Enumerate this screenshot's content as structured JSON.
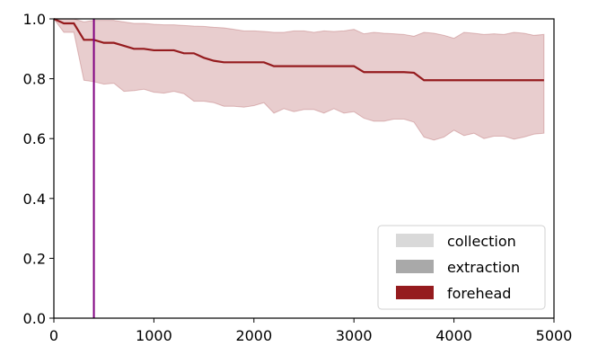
{
  "chart_data": {
    "type": "line",
    "title": "",
    "xlabel": "",
    "ylabel": "",
    "xlim": [
      0,
      5000
    ],
    "ylim": [
      0,
      1.0
    ],
    "xticks": [
      0,
      1000,
      2000,
      3000,
      4000,
      5000
    ],
    "yticks": [
      0.0,
      0.2,
      0.4,
      0.6,
      0.8,
      1.0
    ],
    "xtick_labels": [
      "0",
      "1000",
      "2000",
      "3000",
      "4000",
      "5000"
    ],
    "ytick_labels": [
      "0.0",
      "0.2",
      "0.4",
      "0.6",
      "0.8",
      "1.0"
    ],
    "grid": false,
    "vline": {
      "x": 400,
      "color": "#800080"
    },
    "series": [
      {
        "name": "forehead",
        "color": "#951b1e",
        "x": [
          0,
          100,
          200,
          300,
          400,
          500,
          600,
          700,
          800,
          900,
          1000,
          1100,
          1200,
          1300,
          1400,
          1500,
          1600,
          1700,
          1800,
          1900,
          2000,
          2100,
          2200,
          2300,
          2400,
          2500,
          2600,
          2700,
          2800,
          2900,
          3000,
          3100,
          3200,
          3300,
          3400,
          3500,
          3600,
          3700,
          3800,
          3900,
          4000,
          4100,
          4200,
          4300,
          4400,
          4500,
          4600,
          4700,
          4800,
          4900
        ],
        "y": [
          1.0,
          0.985,
          0.985,
          0.93,
          0.93,
          0.92,
          0.92,
          0.91,
          0.9,
          0.9,
          0.895,
          0.895,
          0.895,
          0.885,
          0.885,
          0.87,
          0.86,
          0.855,
          0.855,
          0.855,
          0.855,
          0.855,
          0.842,
          0.842,
          0.842,
          0.842,
          0.842,
          0.842,
          0.842,
          0.842,
          0.842,
          0.822,
          0.822,
          0.822,
          0.822,
          0.822,
          0.82,
          0.795,
          0.795,
          0.795,
          0.795,
          0.795,
          0.795,
          0.795,
          0.795,
          0.795,
          0.795,
          0.795,
          0.795,
          0.795
        ],
        "lower": [
          1.0,
          0.955,
          0.955,
          0.795,
          0.79,
          0.782,
          0.785,
          0.758,
          0.76,
          0.765,
          0.755,
          0.752,
          0.758,
          0.75,
          0.725,
          0.725,
          0.72,
          0.708,
          0.708,
          0.705,
          0.71,
          0.72,
          0.685,
          0.7,
          0.69,
          0.697,
          0.697,
          0.685,
          0.7,
          0.685,
          0.69,
          0.668,
          0.658,
          0.658,
          0.665,
          0.665,
          0.655,
          0.605,
          0.595,
          0.605,
          0.628,
          0.61,
          0.618,
          0.6,
          0.608,
          0.608,
          0.598,
          0.605,
          0.615,
          0.618
        ],
        "upper": [
          1.0,
          1.0,
          1.0,
          0.99,
          0.995,
          0.995,
          0.995,
          0.99,
          0.985,
          0.985,
          0.982,
          0.98,
          0.98,
          0.978,
          0.976,
          0.975,
          0.972,
          0.97,
          0.965,
          0.96,
          0.96,
          0.958,
          0.955,
          0.955,
          0.96,
          0.96,
          0.955,
          0.96,
          0.958,
          0.96,
          0.965,
          0.95,
          0.955,
          0.952,
          0.95,
          0.948,
          0.942,
          0.955,
          0.952,
          0.945,
          0.935,
          0.955,
          0.952,
          0.948,
          0.95,
          0.948,
          0.955,
          0.952,
          0.945,
          0.948
        ]
      }
    ],
    "legend": {
      "position": "lower-right",
      "entries": [
        {
          "label": "collection",
          "color": "#d9d9d9"
        },
        {
          "label": "extraction",
          "color": "#a9a9a9"
        },
        {
          "label": "forehead",
          "color": "#951b1e"
        }
      ]
    }
  }
}
